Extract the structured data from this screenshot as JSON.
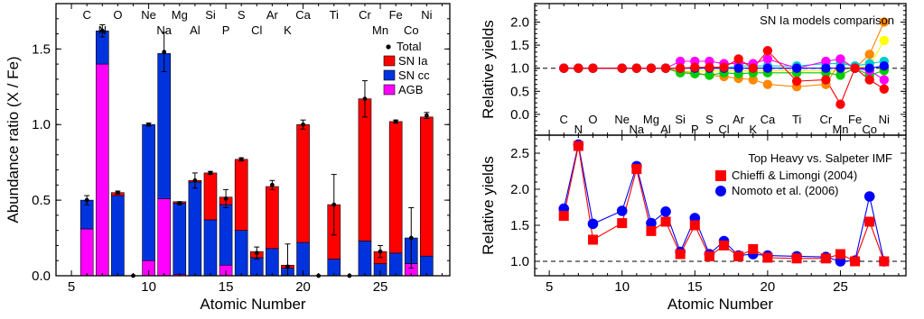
{
  "chart_data": [
    {
      "type": "bar",
      "stacked": true,
      "xlabel": "Atomic Number",
      "ylabel": "Abundance ratio (X / Fe)",
      "xlim": [
        4,
        29.5
      ],
      "ylim": [
        0,
        1.8
      ],
      "xticks": [
        "5",
        "10",
        "15",
        "20",
        "25"
      ],
      "yticks": [
        "0.0",
        "0.5",
        "1.0",
        "1.5"
      ],
      "element_labels": [
        {
          "z": 6,
          "sym": "C",
          "row": 0
        },
        {
          "z": 7,
          "sym": "N",
          "row": 1
        },
        {
          "z": 8,
          "sym": "O",
          "row": 0
        },
        {
          "z": 10,
          "sym": "Ne",
          "row": 0
        },
        {
          "z": 11,
          "sym": "Na",
          "row": 1
        },
        {
          "z": 12,
          "sym": "Mg",
          "row": 0
        },
        {
          "z": 13,
          "sym": "Al",
          "row": 1
        },
        {
          "z": 14,
          "sym": "Si",
          "row": 0
        },
        {
          "z": 15,
          "sym": "P",
          "row": 1
        },
        {
          "z": 16,
          "sym": "S",
          "row": 0
        },
        {
          "z": 17,
          "sym": "Cl",
          "row": 1
        },
        {
          "z": 18,
          "sym": "Ar",
          "row": 0
        },
        {
          "z": 19,
          "sym": "K",
          "row": 1
        },
        {
          "z": 20,
          "sym": "Ca",
          "row": 0
        },
        {
          "z": 22,
          "sym": "Ti",
          "row": 0
        },
        {
          "z": 24,
          "sym": "Cr",
          "row": 0
        },
        {
          "z": 25,
          "sym": "Mn",
          "row": 1
        },
        {
          "z": 26,
          "sym": "Fe",
          "row": 0
        },
        {
          "z": 27,
          "sym": "Co",
          "row": 1
        },
        {
          "z": 28,
          "sym": "Ni",
          "row": 0
        }
      ],
      "legend": {
        "position": "top-right",
        "total_label": "Total",
        "entries": [
          {
            "name": "SN Ia",
            "color": "#ff0000"
          },
          {
            "name": "SN cc",
            "color": "#0033dd"
          },
          {
            "name": "AGB",
            "color": "#ff00ff"
          }
        ]
      },
      "colors": {
        "sn_ia": "#ff0000",
        "sn_cc": "#0033dd",
        "agb": "#ff00ff"
      },
      "bars": [
        {
          "z": 6,
          "agb": 0.31,
          "sn_cc": 0.19,
          "sn_ia": 0.0,
          "total": 0.5,
          "err": 0.03
        },
        {
          "z": 7,
          "agb": 1.4,
          "sn_cc": 0.22,
          "sn_ia": 0.0,
          "total": 1.62,
          "err": 0.04
        },
        {
          "z": 8,
          "agb": 0.0,
          "sn_cc": 0.53,
          "sn_ia": 0.02,
          "total": 0.55,
          "err": 0.01
        },
        {
          "z": 9,
          "agb": 0.0,
          "sn_cc": 0.0,
          "sn_ia": 0.0,
          "total": 0.0,
          "err": 0.0
        },
        {
          "z": 10,
          "agb": 0.1,
          "sn_cc": 0.9,
          "sn_ia": 0.0,
          "total": 1.0,
          "err": 0.01
        },
        {
          "z": 11,
          "agb": 0.51,
          "sn_cc": 0.96,
          "sn_ia": 0.0,
          "total": 1.48,
          "err": 0.13
        },
        {
          "z": 12,
          "agb": 0.01,
          "sn_cc": 0.47,
          "sn_ia": 0.01,
          "total": 0.48,
          "err": 0.01
        },
        {
          "z": 13,
          "agb": 0.0,
          "sn_cc": 0.62,
          "sn_ia": 0.01,
          "total": 0.63,
          "err": 0.05
        },
        {
          "z": 14,
          "agb": 0.0,
          "sn_cc": 0.37,
          "sn_ia": 0.31,
          "total": 0.68,
          "err": 0.01
        },
        {
          "z": 15,
          "agb": 0.07,
          "sn_cc": 0.4,
          "sn_ia": 0.05,
          "total": 0.51,
          "err": 0.06
        },
        {
          "z": 16,
          "agb": 0.0,
          "sn_cc": 0.3,
          "sn_ia": 0.47,
          "total": 0.77,
          "err": 0.01
        },
        {
          "z": 17,
          "agb": 0.0,
          "sn_cc": 0.12,
          "sn_ia": 0.04,
          "total": 0.15,
          "err": 0.04
        },
        {
          "z": 18,
          "agb": 0.0,
          "sn_cc": 0.18,
          "sn_ia": 0.41,
          "total": 0.6,
          "err": 0.03
        },
        {
          "z": 19,
          "agb": 0.0,
          "sn_cc": 0.05,
          "sn_ia": 0.02,
          "total": 0.06,
          "err": 0.15
        },
        {
          "z": 20,
          "agb": 0.0,
          "sn_cc": 0.22,
          "sn_ia": 0.78,
          "total": 1.0,
          "err": 0.03
        },
        {
          "z": 21,
          "agb": 0.0,
          "sn_cc": 0.0,
          "sn_ia": 0.0,
          "total": 0.0,
          "err": 0.0
        },
        {
          "z": 22,
          "agb": 0.0,
          "sn_cc": 0.11,
          "sn_ia": 0.36,
          "total": 0.47,
          "err": 0.2
        },
        {
          "z": 23,
          "agb": 0.0,
          "sn_cc": 0.0,
          "sn_ia": 0.0,
          "total": 0.0,
          "err": 0.0
        },
        {
          "z": 24,
          "agb": 0.0,
          "sn_cc": 0.23,
          "sn_ia": 0.94,
          "total": 1.17,
          "err": 0.12
        },
        {
          "z": 25,
          "agb": 0.0,
          "sn_cc": 0.08,
          "sn_ia": 0.08,
          "total": 0.16,
          "err": 0.04
        },
        {
          "z": 26,
          "agb": 0.0,
          "sn_cc": 0.15,
          "sn_ia": 0.87,
          "total": 1.02,
          "err": 0.01
        },
        {
          "z": 27,
          "agb": 0.08,
          "sn_cc": 0.17,
          "sn_ia": 0.0,
          "total": 0.25,
          "err": 0.2
        },
        {
          "z": 28,
          "agb": 0.0,
          "sn_cc": 0.13,
          "sn_ia": 0.92,
          "total": 1.06,
          "err": 0.02
        }
      ]
    },
    {
      "type": "line",
      "annotation": "SN Ia models comparison",
      "ylabel": "Relative yields",
      "xlim": [
        4,
        29.5
      ],
      "ylim": [
        -0.45,
        2.4
      ],
      "yticks": [
        "0.0",
        "0.5",
        "1.0",
        "1.5",
        "2.0"
      ],
      "reference_line": 1.0,
      "element_labels": [
        {
          "z": 6,
          "sym": "C",
          "row": 0
        },
        {
          "z": 7,
          "sym": "N",
          "row": 1
        },
        {
          "z": 8,
          "sym": "O",
          "row": 0
        },
        {
          "z": 10,
          "sym": "Ne",
          "row": 0
        },
        {
          "z": 11,
          "sym": "Na",
          "row": 1
        },
        {
          "z": 12,
          "sym": "Mg",
          "row": 0
        },
        {
          "z": 13,
          "sym": "Al",
          "row": 1
        },
        {
          "z": 14,
          "sym": "Si",
          "row": 0
        },
        {
          "z": 15,
          "sym": "P",
          "row": 1
        },
        {
          "z": 16,
          "sym": "S",
          "row": 0
        },
        {
          "z": 17,
          "sym": "Cl",
          "row": 1
        },
        {
          "z": 18,
          "sym": "Ar",
          "row": 0
        },
        {
          "z": 19,
          "sym": "K",
          "row": 1
        },
        {
          "z": 20,
          "sym": "Ca",
          "row": 0
        },
        {
          "z": 22,
          "sym": "Ti",
          "row": 0
        },
        {
          "z": 24,
          "sym": "Cr",
          "row": 0
        },
        {
          "z": 25,
          "sym": "Mn",
          "row": 1
        },
        {
          "z": 26,
          "sym": "Fe",
          "row": 0
        },
        {
          "z": 27,
          "sym": "Co",
          "row": 1
        },
        {
          "z": 28,
          "sym": "Ni",
          "row": 0
        }
      ],
      "x": [
        6,
        7,
        8,
        10,
        11,
        12,
        13,
        14,
        15,
        16,
        17,
        18,
        19,
        20,
        22,
        24,
        25,
        26,
        27,
        28
      ],
      "series": [
        {
          "color": "#ffff00",
          "values": [
            1.0,
            1.0,
            1.0,
            1.0,
            1.0,
            1.0,
            1.0,
            0.92,
            0.93,
            0.95,
            0.95,
            0.95,
            0.95,
            0.95,
            0.95,
            0.95,
            0.95,
            1.0,
            1.05,
            1.6
          ]
        },
        {
          "color": "#ff8800",
          "values": [
            1.0,
            1.0,
            1.0,
            1.0,
            1.0,
            1.0,
            1.0,
            0.93,
            0.9,
            0.85,
            0.82,
            0.78,
            0.75,
            0.65,
            0.6,
            0.65,
            1.15,
            1.0,
            1.3,
            2.0
          ]
        },
        {
          "color": "#00cccc",
          "values": [
            1.0,
            1.0,
            1.0,
            1.0,
            1.0,
            1.0,
            1.0,
            1.0,
            1.0,
            1.0,
            1.0,
            1.05,
            1.05,
            1.05,
            1.05,
            1.1,
            1.1,
            1.05,
            1.1,
            1.15
          ]
        },
        {
          "color": "#00cc00",
          "values": [
            1.0,
            1.0,
            1.0,
            1.0,
            1.0,
            1.0,
            1.0,
            0.9,
            0.88,
            0.85,
            0.9,
            0.88,
            0.9,
            0.9,
            0.9,
            0.9,
            0.85,
            1.0,
            0.85,
            0.95
          ]
        },
        {
          "color": "#ff00ff",
          "values": [
            1.0,
            1.0,
            1.0,
            1.0,
            1.0,
            1.0,
            1.0,
            1.15,
            1.15,
            1.15,
            1.1,
            1.1,
            1.1,
            1.2,
            1.0,
            1.15,
            1.2,
            1.0,
            0.95,
            0.75
          ]
        },
        {
          "color": "#0000ff",
          "values": [
            1.0,
            1.0,
            1.0,
            1.0,
            1.0,
            1.0,
            1.0,
            1.0,
            1.0,
            1.0,
            1.0,
            1.0,
            1.0,
            1.0,
            1.0,
            1.0,
            1.0,
            1.0,
            1.0,
            1.05
          ]
        },
        {
          "color": "#ff0000",
          "values": [
            1.0,
            1.0,
            1.0,
            1.0,
            1.0,
            1.0,
            1.0,
            1.0,
            1.02,
            1.02,
            1.02,
            1.2,
            1.0,
            1.38,
            0.72,
            0.75,
            0.22,
            1.0,
            0.75,
            0.55
          ]
        }
      ]
    },
    {
      "type": "line",
      "annotation": "Top Heavy vs. Salpeter IMF",
      "xlabel": "Atomic Number",
      "ylabel": "Relative yields",
      "xlim": [
        4,
        29.5
      ],
      "ylim": [
        0.8,
        2.75
      ],
      "xticks": [
        "5",
        "10",
        "15",
        "20",
        "25"
      ],
      "yticks": [
        "1.0",
        "1.5",
        "2.0",
        "2.5"
      ],
      "reference_line": 1.0,
      "x": [
        6,
        7,
        8,
        10,
        11,
        12,
        13,
        14,
        15,
        16,
        17,
        18,
        19,
        20,
        22,
        24,
        25,
        26,
        27,
        28
      ],
      "legend": {
        "position": "top-right"
      },
      "series": [
        {
          "name": "Chieffi & Limongi (2004)",
          "color": "#ff0000",
          "marker": "square",
          "values": [
            1.63,
            2.6,
            1.3,
            1.53,
            2.28,
            1.42,
            1.55,
            1.1,
            1.5,
            1.07,
            1.22,
            1.07,
            1.17,
            1.05,
            1.04,
            1.04,
            1.1,
            1.0,
            1.55,
            1.0
          ]
        },
        {
          "name": "Nomoto et al. (2006)",
          "color": "#0000ff",
          "marker": "circle",
          "values": [
            1.73,
            2.62,
            1.52,
            1.7,
            2.32,
            1.53,
            1.69,
            1.13,
            1.6,
            1.1,
            1.28,
            1.08,
            1.1,
            1.08,
            1.07,
            1.06,
            1.0,
            1.01,
            1.9,
            1.0
          ]
        }
      ]
    }
  ]
}
